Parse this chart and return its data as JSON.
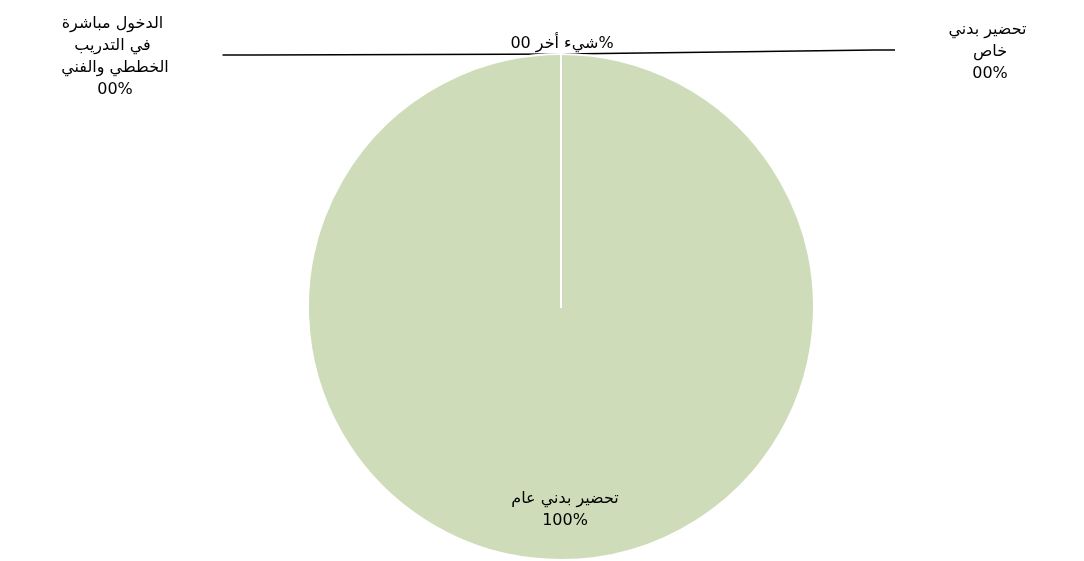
{
  "chart_data": {
    "type": "pie",
    "categories": [
      "تحضير بدني عام",
      "تحضير بدني خاص",
      "الدخول مباشرة في التدريب الخططي والفني",
      "شيء أخر"
    ],
    "values": [
      100,
      0,
      0,
      0
    ],
    "value_labels": [
      "100%",
      "00%",
      "00%",
      "00%"
    ],
    "colors": [
      "#cfdcb9",
      "#cfdcb9",
      "#cfdcb9",
      "#cfdcb9"
    ],
    "legend": false
  }
}
